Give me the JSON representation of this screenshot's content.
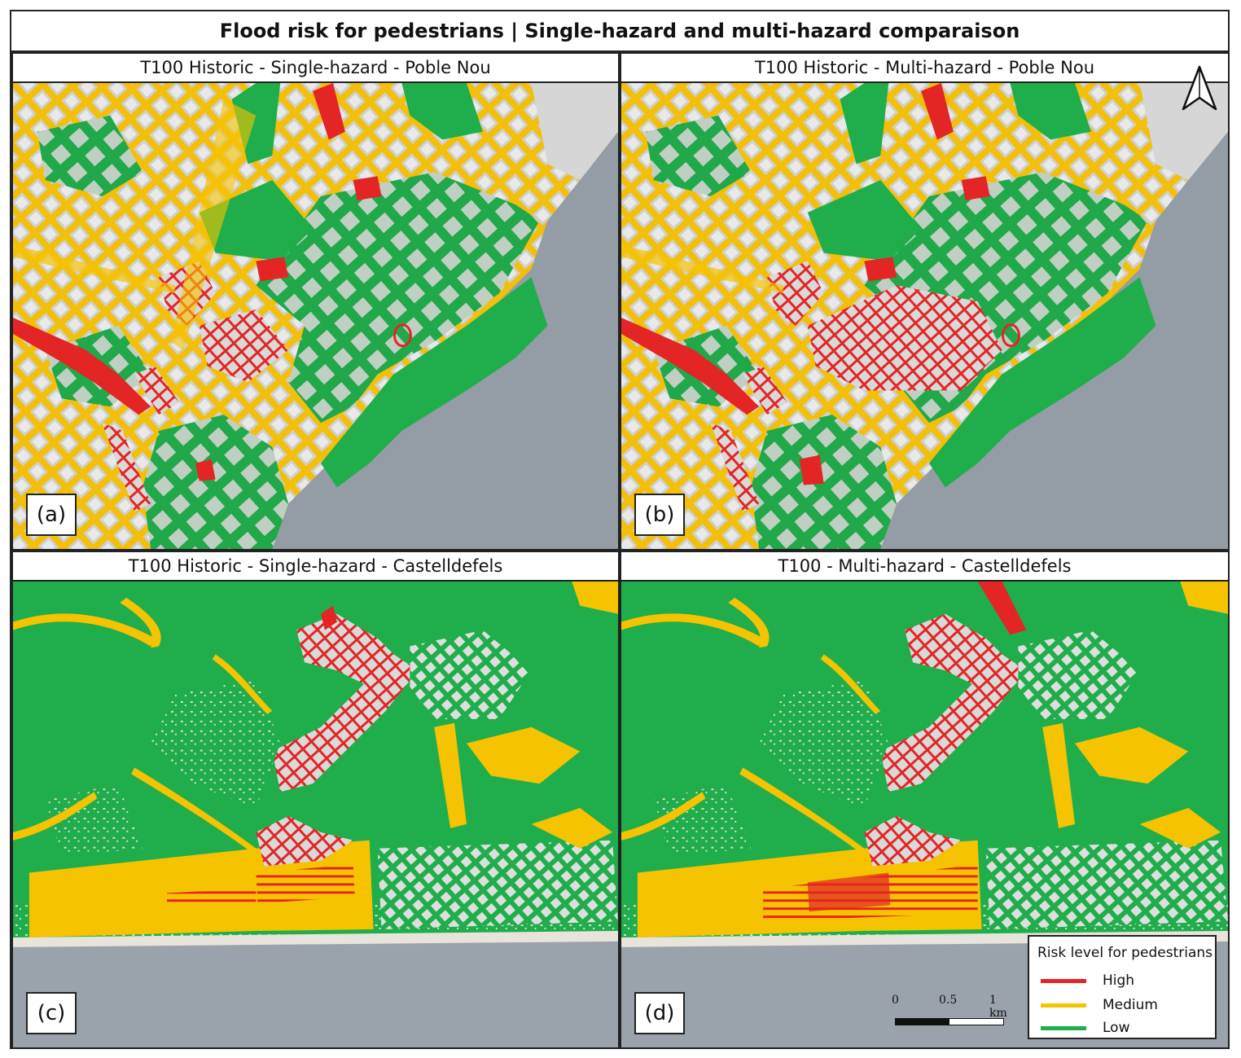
{
  "title": "Flood risk for pedestrians | Single-hazard and multi-hazard comparaison",
  "panels": [
    {
      "label": "(a)",
      "title": "T100 Historic - Single-hazard - Poble Nou"
    },
    {
      "label": "(b)",
      "title": "T100 Historic - Multi-hazard - Poble Nou"
    },
    {
      "label": "(c)",
      "title": "T100 Historic - Single-hazard - Castelldefels"
    },
    {
      "label": "(d)",
      "title": "T100 - Multi-hazard - Castelldefels"
    }
  ],
  "legend": {
    "title": "Risk level for pedestrians",
    "items": [
      {
        "label": "High",
        "color": "#e32525"
      },
      {
        "label": "Medium",
        "color": "#f6c300"
      },
      {
        "label": "Low",
        "color": "#1fae4b"
      }
    ]
  },
  "scale_bar": {
    "ticks": [
      "0",
      "0.5",
      "1 km"
    ]
  },
  "north_arrow": {
    "icon": "north-arrow-icon"
  }
}
